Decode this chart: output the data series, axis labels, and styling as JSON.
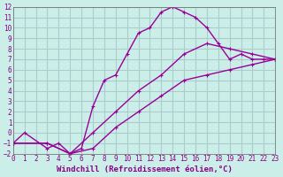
{
  "xlabel": "Windchill (Refroidissement éolien,°C)",
  "bg_color": "#cceee8",
  "grid_color": "#aacccc",
  "line_color": "#990099",
  "xlim": [
    0,
    23
  ],
  "ylim": [
    -2,
    12
  ],
  "xticks": [
    0,
    1,
    2,
    3,
    4,
    5,
    6,
    7,
    8,
    9,
    10,
    11,
    12,
    13,
    14,
    15,
    16,
    17,
    18,
    19,
    20,
    21,
    22,
    23
  ],
  "yticks": [
    -2,
    -1,
    0,
    1,
    2,
    3,
    4,
    5,
    6,
    7,
    8,
    9,
    10,
    11,
    12
  ],
  "line1_x": [
    0,
    1,
    3,
    4,
    5,
    6,
    7,
    8,
    9,
    10,
    11,
    12,
    13,
    14,
    15,
    16,
    17,
    18,
    19,
    20,
    21,
    22,
    23
  ],
  "line1_y": [
    -1,
    0,
    -1.5,
    -1,
    -2,
    -1.5,
    2.5,
    5,
    5.5,
    7.5,
    9.5,
    10,
    11.5,
    12,
    11.5,
    11,
    10,
    8.5,
    7,
    7.5,
    7,
    7,
    7
  ],
  "line2_x": [
    0,
    3,
    5,
    7,
    9,
    11,
    13,
    15,
    17,
    19,
    21,
    23
  ],
  "line2_y": [
    -1,
    -1,
    -2,
    0,
    2,
    4,
    5.5,
    7.5,
    8.5,
    8,
    7.5,
    7
  ],
  "line3_x": [
    0,
    3,
    5,
    7,
    9,
    11,
    13,
    15,
    17,
    19,
    21,
    23
  ],
  "line3_y": [
    -1,
    -1,
    -2,
    -1.5,
    0.5,
    2,
    3.5,
    5,
    5.5,
    6,
    6.5,
    7
  ],
  "tick_fontsize": 5.5,
  "xlabel_fontsize": 6.5
}
